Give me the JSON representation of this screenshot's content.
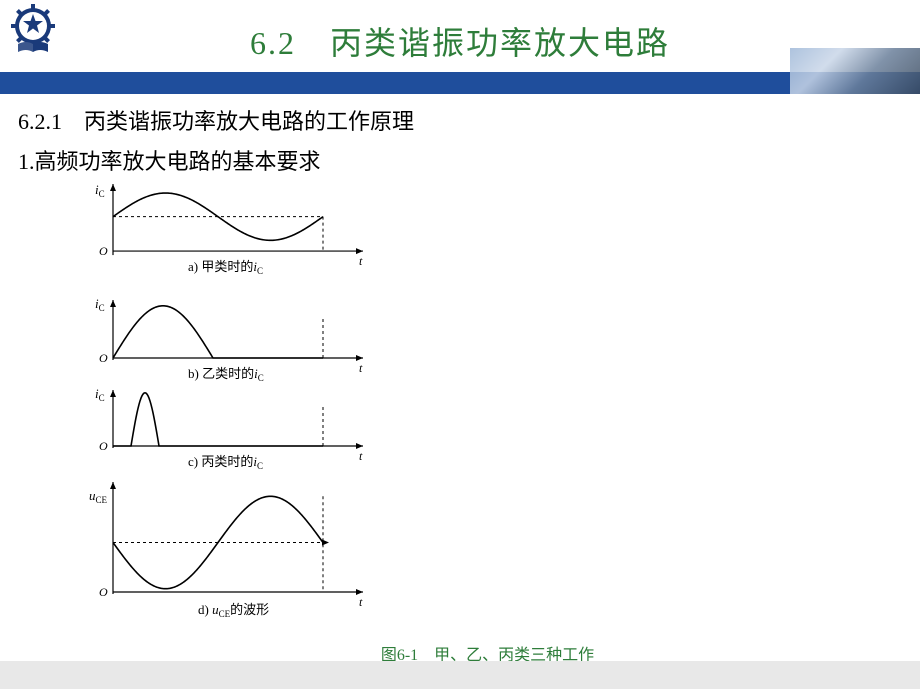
{
  "header": {
    "title": "6.2　丙类谐振功率放大电路",
    "title_color": "#2e7d3a",
    "title_fontsize": 32,
    "bar_color": "#1f4e9c"
  },
  "logo": {
    "gear_color": "#1a3a7a",
    "star_color": "#1a3a7a",
    "book_color": "#1a3a7a"
  },
  "content": {
    "subheading1": "6.2.1　丙类谐振功率放大电路的工作原理",
    "subheading2": "1.高频功率放大电路的基本要求"
  },
  "figure": {
    "caption": "图6-1　甲、乙、丙类三种工作",
    "caption_color": "#2e7d3a",
    "panels": {
      "a": {
        "ylabel": "i",
        "ylabel_sub": "C",
        "origin": "O",
        "xlabel": "t",
        "sublabel_prefix": "a) 甲类时的",
        "sublabel_var": "i",
        "sublabel_sub": "C",
        "type": "full-sine-offset",
        "xlim": [
          0,
          220
        ],
        "dc_level": 0.4,
        "amplitude": 0.55,
        "period": 200
      },
      "b": {
        "ylabel": "i",
        "ylabel_sub": "C",
        "origin": "O",
        "xlabel": "t",
        "sublabel_prefix": "b) 乙类时的",
        "sublabel_var": "i",
        "sublabel_sub": "C",
        "type": "half-sine",
        "xlim": [
          0,
          220
        ],
        "amplitude": 0.9,
        "half_width": 100
      },
      "c": {
        "ylabel": "i",
        "ylabel_sub": "C",
        "origin": "O",
        "xlabel": "t",
        "sublabel_prefix": "c) 丙类时的",
        "sublabel_var": "i",
        "sublabel_sub": "C",
        "type": "narrow-pulse",
        "xlim": [
          0,
          220
        ],
        "amplitude": 0.95,
        "pulse_start": 18,
        "pulse_width": 28
      },
      "d": {
        "ylabel": "u",
        "ylabel_sub": "CE",
        "origin": "O",
        "xlabel": "t",
        "sublabel_prefix": "d) ",
        "sublabel_var": "u",
        "sublabel_sub": "CE",
        "sublabel_suffix": "的波形",
        "type": "inverted-sine-offset",
        "xlim": [
          0,
          220
        ],
        "dc_level": 0.45,
        "amplitude": 0.42,
        "period": 200
      }
    },
    "axis_color": "#000000",
    "curve_color": "#000000",
    "background": "#ffffff"
  },
  "footer": {
    "bg": "#e8e8e8"
  }
}
